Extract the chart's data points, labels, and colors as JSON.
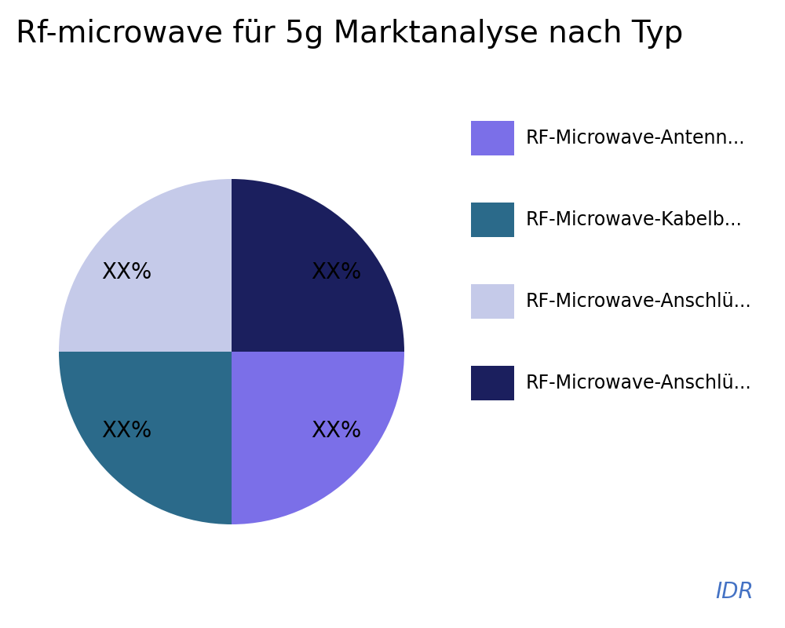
{
  "title": "Rf-microwave für 5g Marktanalyse nach Typ",
  "slices": [
    25,
    25,
    25,
    25
  ],
  "labels": [
    "XX%",
    "XX%",
    "XX%",
    "XX%"
  ],
  "colors": [
    "#1B1F5E",
    "#7B6FE8",
    "#2B6A8A",
    "#C5CAE9"
  ],
  "legend_labels": [
    "RF-Microwave-Antenn...",
    "RF-Microwave-Kabelb...",
    "RF-Microwave-Anschlü...",
    "RF-Microwave-Anschlü..."
  ],
  "legend_colors": [
    "#7B6FE8",
    "#2B6A8A",
    "#C5CAE9",
    "#1B1F5E"
  ],
  "watermark": "IDR",
  "watermark_color": "#4472C4",
  "title_fontsize": 28,
  "label_fontsize": 20,
  "legend_fontsize": 17,
  "startangle": 90,
  "background_color": "#FFFFFF"
}
